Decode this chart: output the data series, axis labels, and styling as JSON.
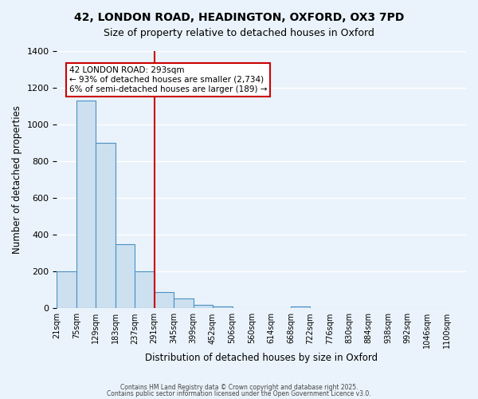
{
  "title_line1": "42, LONDON ROAD, HEADINGTON, OXFORD, OX3 7PD",
  "title_line2": "Size of property relative to detached houses in Oxford",
  "xlabel": "Distribution of detached houses by size in Oxford",
  "ylabel": "Number of detached properties",
  "bin_edges": [
    21,
    75,
    129,
    183,
    237,
    291,
    345,
    399,
    452,
    506,
    560,
    614,
    668,
    722,
    776,
    830,
    884,
    938,
    992,
    1046,
    1100
  ],
  "bin_labels": [
    "21sqm",
    "75sqm",
    "129sqm",
    "183sqm",
    "237sqm",
    "291sqm",
    "345sqm",
    "399sqm",
    "452sqm",
    "506sqm",
    "560sqm",
    "614sqm",
    "668sqm",
    "722sqm",
    "776sqm",
    "830sqm",
    "884sqm",
    "938sqm",
    "992sqm",
    "1046sqm",
    "1100sqm"
  ],
  "counts": [
    200,
    1130,
    900,
    350,
    200,
    90,
    55,
    20,
    10,
    0,
    0,
    0,
    10,
    0,
    0,
    0,
    0,
    0,
    0,
    0
  ],
  "bar_color": "#cce0f0",
  "bar_edge_color": "#4a90c4",
  "property_value": 293,
  "vline_x_bin_index": 5,
  "vline_color": "#cc0000",
  "annotation_text": "42 LONDON ROAD: 293sqm\n← 93% of detached houses are smaller (2,734)\n6% of semi-detached houses are larger (189) →",
  "annotation_box_color": "#ffffff",
  "annotation_box_edge_color": "#cc0000",
  "ylim": [
    0,
    1400
  ],
  "yticks": [
    0,
    200,
    400,
    600,
    800,
    1000,
    1200,
    1400
  ],
  "background_color": "#eaf3fb",
  "grid_color": "#ffffff",
  "footer_line1": "Contains HM Land Registry data © Crown copyright and database right 2025.",
  "footer_line2": "Contains public sector information licensed under the Open Government Licence v3.0."
}
